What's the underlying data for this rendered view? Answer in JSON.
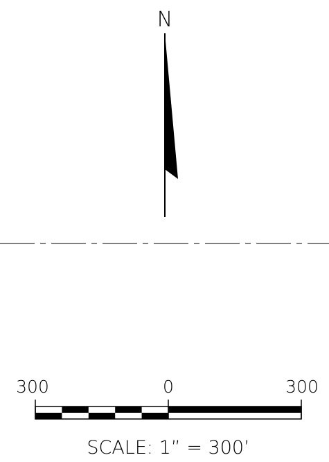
{
  "north_arrow": {
    "label": "N"
  },
  "scale_bar": {
    "left_label": "300",
    "center_label": "0",
    "right_label": "300",
    "caption": "SCALE:  1”  = 300’",
    "left_segments": 5,
    "color": "#000000"
  },
  "colors": {
    "background": "#ffffff",
    "ink": "#000000"
  }
}
